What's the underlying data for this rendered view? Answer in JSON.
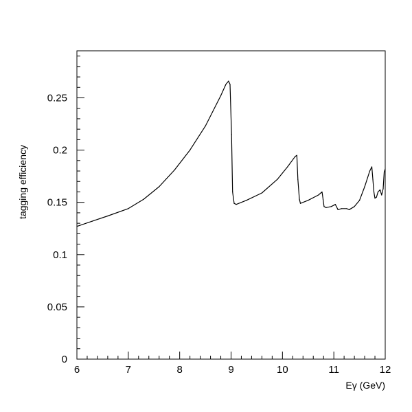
{
  "chart_data": {
    "type": "line",
    "title": "",
    "xlabel": "Eγ (GeV)",
    "ylabel": "tagging efficiency",
    "xlim": [
      6,
      12
    ],
    "ylim": [
      0,
      0.295
    ],
    "grid": false,
    "legend": "none",
    "x_ticks": [
      6,
      7,
      8,
      9,
      10,
      11,
      12
    ],
    "x_tick_labels": [
      "6",
      "7",
      "8",
      "9",
      "10",
      "11",
      "12"
    ],
    "y_ticks": [
      0,
      0.05,
      0.1,
      0.15,
      0.2,
      0.25
    ],
    "y_tick_labels": [
      "0",
      "0.05",
      "0.1",
      "0.15",
      "0.2",
      "0.25"
    ],
    "series": [
      {
        "color": "#000000",
        "x": [
          6.0,
          6.3,
          6.6,
          7.0,
          7.3,
          7.6,
          7.9,
          8.2,
          8.5,
          8.8,
          8.9,
          8.95,
          8.98,
          9.01,
          9.03,
          9.06,
          9.1,
          9.3,
          9.6,
          9.9,
          10.1,
          10.25,
          10.28,
          10.3,
          10.33,
          10.35,
          10.5,
          10.7,
          10.77,
          10.79,
          10.81,
          10.85,
          10.95,
          11.03,
          11.05,
          11.08,
          11.15,
          11.25,
          11.3,
          11.4,
          11.5,
          11.6,
          11.7,
          11.74,
          11.76,
          11.78,
          11.8,
          11.83,
          11.86,
          11.9,
          11.93,
          11.96,
          11.98,
          12.0
        ],
        "y": [
          0.127,
          0.132,
          0.137,
          0.144,
          0.153,
          0.165,
          0.181,
          0.2,
          0.223,
          0.252,
          0.263,
          0.266,
          0.263,
          0.215,
          0.16,
          0.149,
          0.148,
          0.152,
          0.159,
          0.172,
          0.184,
          0.194,
          0.195,
          0.172,
          0.153,
          0.149,
          0.152,
          0.157,
          0.16,
          0.153,
          0.146,
          0.145,
          0.146,
          0.148,
          0.146,
          0.143,
          0.144,
          0.144,
          0.143,
          0.146,
          0.152,
          0.165,
          0.18,
          0.184,
          0.172,
          0.16,
          0.154,
          0.155,
          0.16,
          0.162,
          0.157,
          0.163,
          0.179,
          0.182
        ]
      }
    ]
  }
}
